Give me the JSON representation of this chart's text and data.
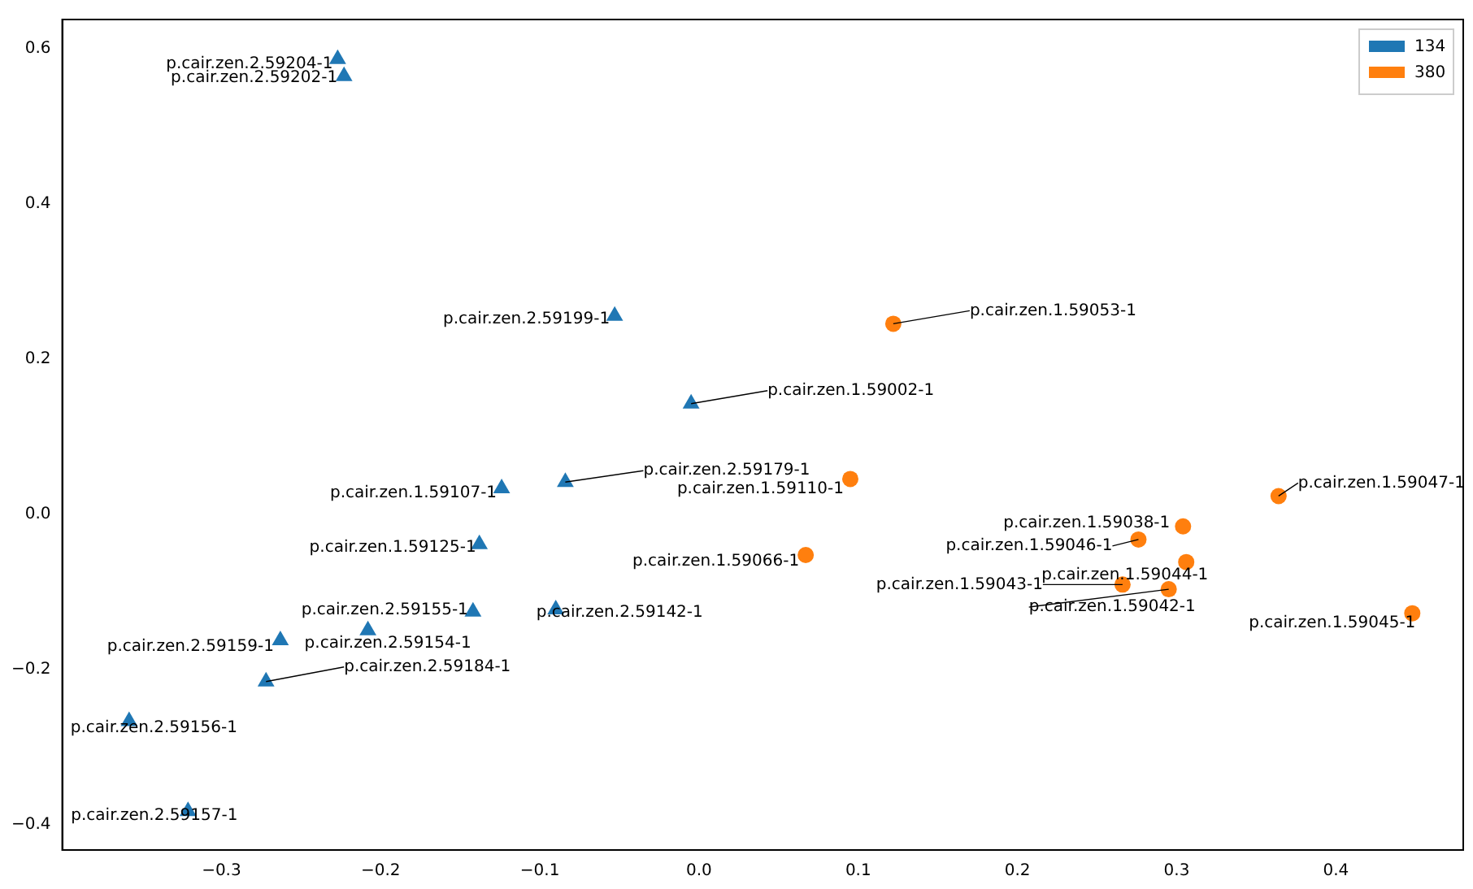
{
  "chart_data": {
    "type": "scatter",
    "xlim": [
      -0.4,
      0.48
    ],
    "xticks": [
      {
        "value": -0.3,
        "label": "−0.3"
      },
      {
        "value": -0.2,
        "label": "−0.2"
      },
      {
        "value": -0.1,
        "label": "−0.1"
      },
      {
        "value": 0,
        "label": "0.0"
      },
      0.1,
      0.2,
      0.3,
      0.4
    ],
    "ylim": [
      -0.433,
      0.637
    ],
    "yticks": [
      {
        "value": -0.4,
        "label": "−0.4"
      },
      {
        "value": -0.2,
        "label": "−0.2"
      },
      {
        "value": 0,
        "label": "0.0"
      },
      0.2,
      0.4,
      0.6
    ],
    "grid": false,
    "legend": "top right",
    "series": [
      {
        "name": "134",
        "color": "#1f77b4",
        "marker": "triangle",
        "x": [
          -0.227,
          -0.223,
          -0.053,
          -0.005,
          -0.084,
          -0.124,
          -0.138,
          -0.142,
          -0.09,
          -0.208,
          -0.263,
          -0.272,
          -0.358,
          -0.321
        ],
        "values": [
          0.586,
          0.564,
          0.255,
          0.142,
          0.041,
          0.033,
          -0.039,
          -0.126,
          -0.123,
          -0.15,
          -0.163,
          -0.216,
          -0.267,
          -0.383
        ]
      },
      {
        "name": "380",
        "color": "#ff7f0e",
        "marker": "circle",
        "x": [
          0.122,
          0.095,
          0.067,
          0.364,
          0.304,
          0.276,
          0.306,
          0.266,
          0.295,
          0.448
        ],
        "values": [
          0.245,
          0.045,
          -0.053,
          0.023,
          -0.016,
          -0.033,
          -0.062,
          -0.091,
          -0.097,
          -0.128
        ]
      }
    ],
    "annotations": [
      {
        "text": "p.cair.zen.2.59204-1",
        "x": -0.227,
        "y": 0.586
      },
      {
        "text": "p.cair.zen.2.59202-1",
        "x": -0.223,
        "y": 0.564
      },
      {
        "text": "p.cair.zen.2.59199-1",
        "x": -0.053,
        "y": 0.255
      },
      {
        "text": "p.cair.zen.1.59002-1",
        "x": -0.005,
        "y": 0.142
      },
      {
        "text": "p.cair.zen.2.59179-1",
        "x": -0.084,
        "y": 0.041
      },
      {
        "text": "p.cair.zen.1.59107-1",
        "x": -0.124,
        "y": 0.033
      },
      {
        "text": "p.cair.zen.1.59125-1",
        "x": -0.138,
        "y": -0.039
      },
      {
        "text": "p.cair.zen.2.59155-1",
        "x": -0.142,
        "y": -0.126
      },
      {
        "text": "p.cair.zen.2.59142-1",
        "x": -0.09,
        "y": -0.123
      },
      {
        "text": "p.cair.zen.2.59154-1",
        "x": -0.208,
        "y": -0.15
      },
      {
        "text": "p.cair.zen.2.59159-1",
        "x": -0.263,
        "y": -0.163
      },
      {
        "text": "p.cair.zen.2.59184-1",
        "x": -0.272,
        "y": -0.216
      },
      {
        "text": "p.cair.zen.2.59156-1",
        "x": -0.358,
        "y": -0.267
      },
      {
        "text": "p.cair.zen.2.59157-1",
        "x": -0.321,
        "y": -0.383
      },
      {
        "text": "p.cair.zen.1.59053-1",
        "x": 0.122,
        "y": 0.245
      },
      {
        "text": "p.cair.zen.1.59110-1",
        "x": 0.095,
        "y": 0.045
      },
      {
        "text": "p.cair.zen.1.59066-1",
        "x": 0.067,
        "y": -0.053
      },
      {
        "text": "p.cair.zen.1.59047-1",
        "x": 0.364,
        "y": 0.023
      },
      {
        "text": "p.cair.zen.1.59038-1",
        "x": 0.304,
        "y": -0.016
      },
      {
        "text": "p.cair.zen.1.59046-1",
        "x": 0.276,
        "y": -0.033
      },
      {
        "text": "p.cair.zen.1.59044-1",
        "x": 0.306,
        "y": -0.062
      },
      {
        "text": "p.cair.zen.1.59043-1",
        "x": 0.266,
        "y": -0.091
      },
      {
        "text": "p.cair.zen.1.59042-1",
        "x": 0.295,
        "y": -0.097
      },
      {
        "text": "p.cair.zen.1.59045-1",
        "x": 0.448,
        "y": -0.128
      }
    ]
  }
}
